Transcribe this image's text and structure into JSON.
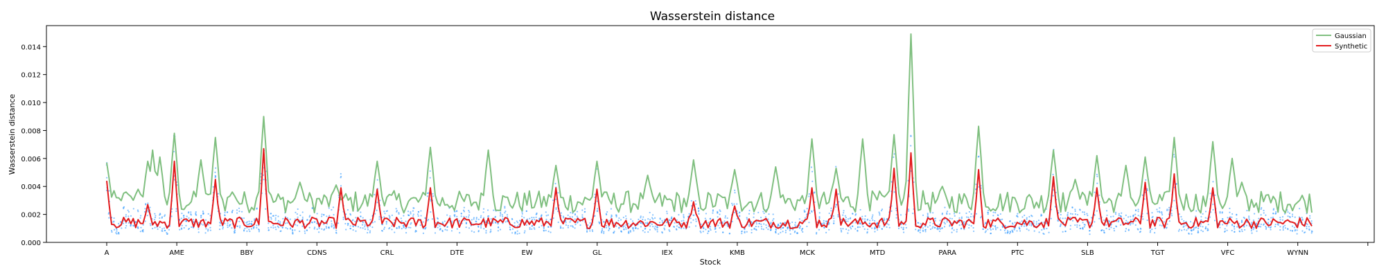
{
  "chart_data": {
    "type": "line",
    "title": "Wasserstein distance",
    "xlabel": "Stock",
    "ylabel": "Wasserstein distance",
    "ylim": [
      0,
      0.0155
    ],
    "yticks": [
      "0.000",
      "0.002",
      "0.004",
      "0.006",
      "0.008",
      "0.010",
      "0.012",
      "0.014"
    ],
    "xtick_labels": [
      "A",
      "AME",
      "BBY",
      "CDNS",
      "CRL",
      "DTE",
      "EW",
      "GL",
      "IEX",
      "KMB",
      "MCK",
      "MTD",
      "PARA",
      "PTC",
      "SLB",
      "TGT",
      "VFC",
      "WYNN",
      ""
    ],
    "legend": {
      "placement": "top-right",
      "entries": [
        "Gaussian",
        "Synthetic"
      ]
    },
    "colors": {
      "gaussian": "#7fbf7f",
      "synthetic": "#e31a1c",
      "scatter": "#1f8fff"
    },
    "grid": false,
    "n_stocks": 500,
    "series": [
      {
        "name": "Gaussian",
        "peaks": [
          [
            0,
            0.0057
          ],
          [
            4,
            0.0032
          ],
          [
            8,
            0.0036
          ],
          [
            13,
            0.0038
          ],
          [
            17,
            0.0058
          ],
          [
            19,
            0.0066
          ],
          [
            22,
            0.0061
          ],
          [
            28,
            0.0078
          ],
          [
            39,
            0.0059
          ],
          [
            45,
            0.0075
          ],
          [
            52,
            0.0036
          ],
          [
            65,
            0.009
          ],
          [
            80,
            0.0043
          ],
          [
            95,
            0.0041
          ],
          [
            112,
            0.0058
          ],
          [
            134,
            0.0068
          ],
          [
            158,
            0.0066
          ],
          [
            186,
            0.0055
          ],
          [
            203,
            0.0058
          ],
          [
            224,
            0.0048
          ],
          [
            243,
            0.0059
          ],
          [
            260,
            0.0052
          ],
          [
            277,
            0.0054
          ],
          [
            292,
            0.0074
          ],
          [
            302,
            0.0053
          ],
          [
            313,
            0.0074
          ],
          [
            326,
            0.0077
          ],
          [
            333,
            0.0149
          ],
          [
            346,
            0.004
          ],
          [
            361,
            0.0083
          ],
          [
            392,
            0.0066
          ],
          [
            401,
            0.0045
          ],
          [
            410,
            0.0062
          ],
          [
            422,
            0.0055
          ],
          [
            430,
            0.0061
          ],
          [
            442,
            0.0075
          ],
          [
            458,
            0.0072
          ],
          [
            466,
            0.006
          ],
          [
            470,
            0.0043
          ]
        ]
      },
      {
        "name": "Synthetic",
        "peaks": [
          [
            0,
            0.0044
          ],
          [
            17,
            0.0027
          ],
          [
            28,
            0.0058
          ],
          [
            45,
            0.0045
          ],
          [
            65,
            0.0067
          ],
          [
            97,
            0.0039
          ],
          [
            112,
            0.0038
          ],
          [
            134,
            0.0039
          ],
          [
            186,
            0.0039
          ],
          [
            203,
            0.0038
          ],
          [
            243,
            0.0029
          ],
          [
            260,
            0.0026
          ],
          [
            292,
            0.0039
          ],
          [
            302,
            0.0038
          ],
          [
            326,
            0.0053
          ],
          [
            333,
            0.0064
          ],
          [
            361,
            0.0052
          ],
          [
            392,
            0.0047
          ],
          [
            410,
            0.0039
          ],
          [
            430,
            0.0043
          ],
          [
            442,
            0.0049
          ],
          [
            458,
            0.0039
          ]
        ]
      }
    ]
  }
}
